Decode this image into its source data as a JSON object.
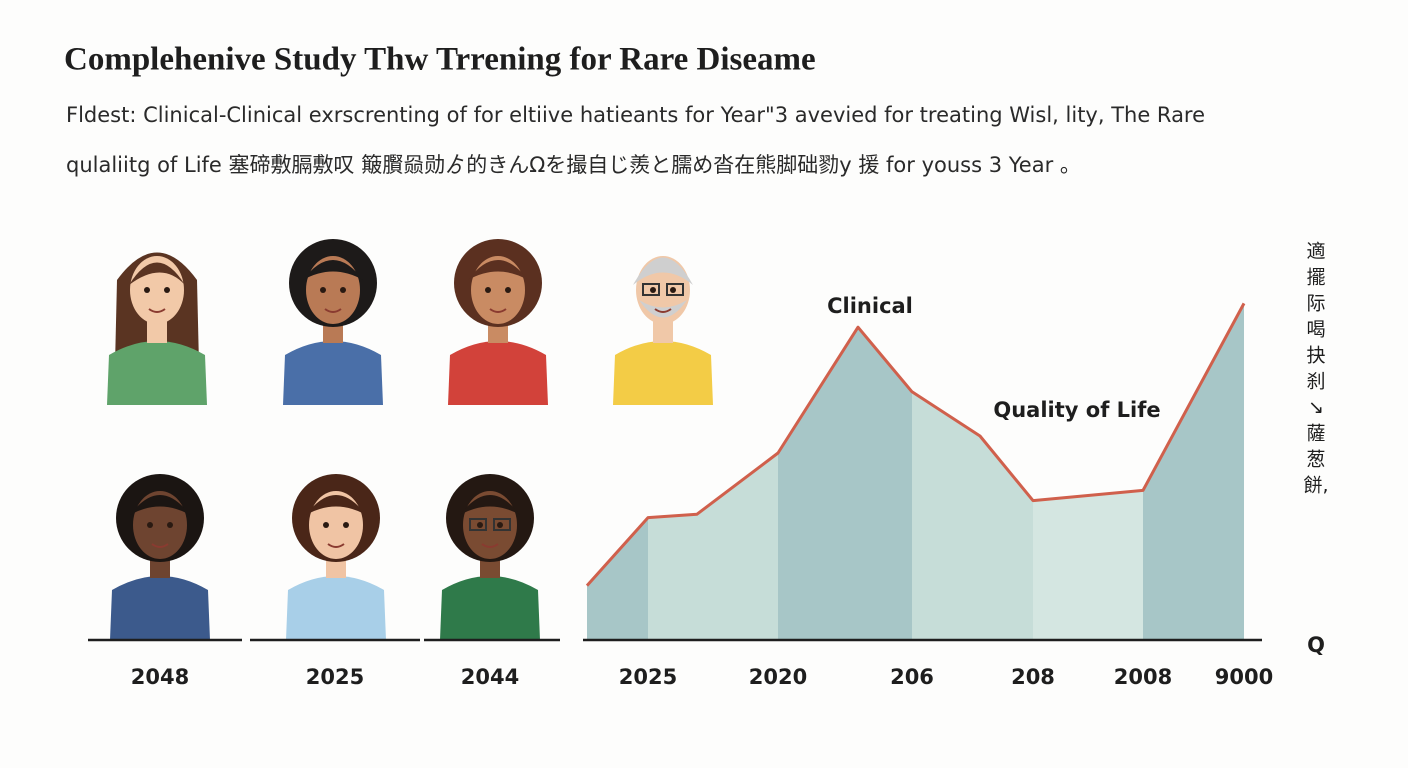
{
  "header": {
    "title": "Complehenive Study Thw Trrening for Rare Diseame",
    "subtitle_lines": [
      "Fldest: Clinical-Clinical exrscrenting of for eltiive hatieants for Year\"3 avevied for treating Wisl, lity, The Rare",
      "qulaliitg of Life 塞碲敷膈敷叹 簸臔赑勋ゟ的きんΩを撮自じ羨と臑め沓在熊脚础勠y 援 for youss 3 Year 。"
    ]
  },
  "portrait_labels": [
    "2048",
    "2025",
    "2044"
  ],
  "chart_data": {
    "type": "area",
    "categories": [
      null,
      "2025",
      null,
      "2020",
      null,
      "206",
      null,
      "208",
      "2008",
      "9000"
    ],
    "values": [
      16,
      36,
      37,
      55,
      92,
      73,
      60,
      41,
      44,
      99
    ],
    "color": "#d0604c",
    "annotations": [
      "Clinical",
      "Quality of Life"
    ]
  },
  "side_text": [
    "適",
    "擺",
    "际",
    "喝",
    "抉",
    "刹",
    "↘",
    "薩",
    "葱",
    "餅,"
  ],
  "corner_label": "Q"
}
